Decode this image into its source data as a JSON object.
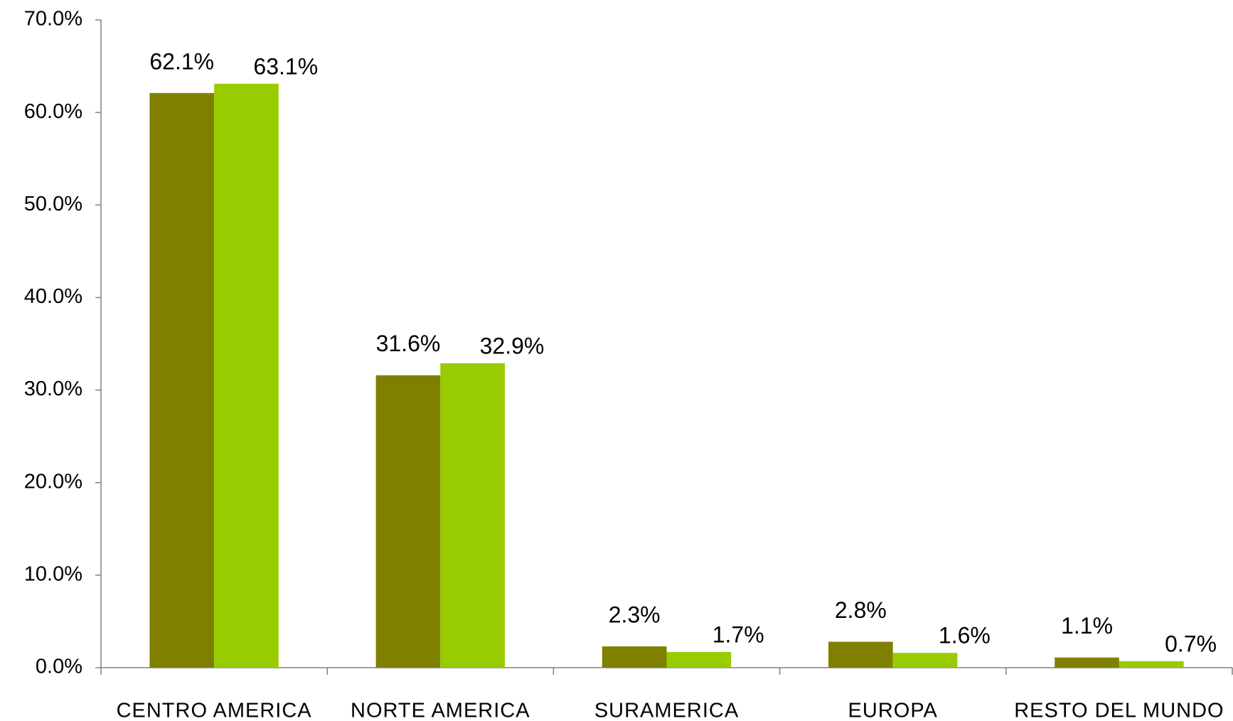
{
  "chart_data": {
    "type": "bar",
    "categories": [
      "CENTRO AMERICA",
      "NORTE AMERICA",
      "SURAMERICA",
      "EUROPA",
      "RESTO DEL MUNDO"
    ],
    "series": [
      {
        "color": "#808000",
        "values": [
          62.1,
          31.6,
          2.3,
          2.8,
          1.1
        ],
        "value_labels": [
          "62.1%",
          "31.6%",
          "2.3%",
          "2.8%",
          "1.1%"
        ]
      },
      {
        "color": "#99cc00",
        "values": [
          63.1,
          32.9,
          1.7,
          1.6,
          0.7
        ],
        "value_labels": [
          "63.1%",
          "32.9%",
          "1.7%",
          "1.6%",
          "0.7%"
        ]
      }
    ],
    "ylim": [
      0,
      70
    ],
    "yticks": [
      {
        "value": 0,
        "label": "0.0%"
      },
      {
        "value": 10,
        "label": "10.0%"
      },
      {
        "value": 20,
        "label": "20.0%"
      },
      {
        "value": 30,
        "label": "30.0%"
      },
      {
        "value": 40,
        "label": "40.0%"
      },
      {
        "value": 50,
        "label": "50.0%"
      },
      {
        "value": 60,
        "label": "60.0%"
      },
      {
        "value": 70,
        "label": "70.0%"
      }
    ],
    "grid": false
  }
}
